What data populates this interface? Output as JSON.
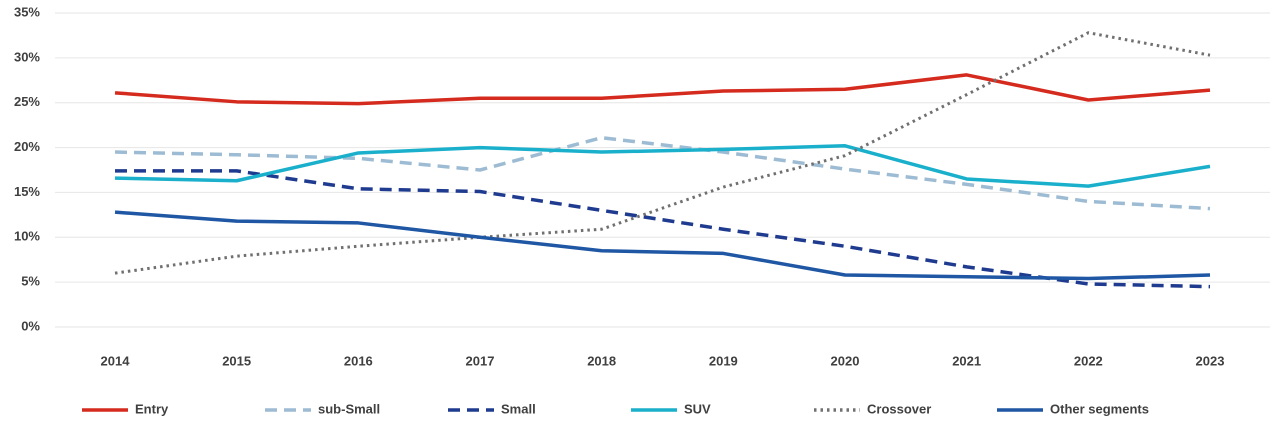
{
  "chart_data": {
    "type": "line",
    "categories": [
      "2014",
      "2015",
      "2016",
      "2017",
      "2018",
      "2019",
      "2020",
      "2021",
      "2022",
      "2023"
    ],
    "series": [
      {
        "name": "Entry",
        "color": "#d52b1e",
        "dash": "solid",
        "values": [
          26.1,
          25.1,
          24.9,
          25.5,
          25.5,
          26.3,
          26.5,
          28.1,
          25.3,
          26.4
        ]
      },
      {
        "name": "sub-Small",
        "color": "#9dbcd4",
        "dash": "dashed",
        "values": [
          19.5,
          19.2,
          18.8,
          17.5,
          21.1,
          19.5,
          17.6,
          15.9,
          14.0,
          13.2
        ]
      },
      {
        "name": "Small",
        "color": "#1f3b8f",
        "dash": "dashed",
        "values": [
          17.4,
          17.4,
          15.4,
          15.1,
          13.0,
          10.9,
          9.0,
          6.7,
          4.8,
          4.5
        ]
      },
      {
        "name": "SUV",
        "color": "#1ab0cc",
        "dash": "solid",
        "values": [
          16.6,
          16.3,
          19.4,
          20.0,
          19.5,
          19.8,
          20.2,
          16.5,
          15.7,
          17.9
        ]
      },
      {
        "name": "Crossover",
        "color": "#707070",
        "dash": "dotted",
        "values": [
          6.0,
          7.9,
          9.0,
          10.0,
          10.9,
          15.6,
          19.1,
          25.9,
          32.8,
          30.3
        ]
      },
      {
        "name": "Other segments",
        "color": "#1f57a4",
        "dash": "solid",
        "values": [
          12.8,
          11.8,
          11.6,
          10.0,
          8.5,
          8.2,
          5.8,
          5.6,
          5.4,
          5.8
        ]
      }
    ],
    "ylim": [
      0,
      35
    ],
    "yticks": [
      {
        "value": 0,
        "label": "0%"
      },
      {
        "value": 5,
        "label": "5%"
      },
      {
        "value": 10,
        "label": "10%"
      },
      {
        "value": 15,
        "label": "15%"
      },
      {
        "value": 20,
        "label": "20%"
      },
      {
        "value": 25,
        "label": "25%"
      },
      {
        "value": 30,
        "label": "30%"
      },
      {
        "value": 35,
        "label": "35%"
      }
    ],
    "grid": true,
    "legend": "bottom"
  }
}
